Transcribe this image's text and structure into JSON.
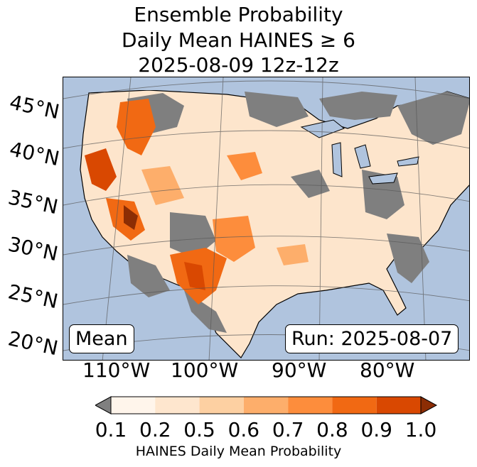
{
  "title": {
    "line1": "Ensemble Probability",
    "line2": "Daily Mean HAINES ≥ 6",
    "line3": "2025-08-09 12z-12z"
  },
  "map": {
    "lat_labels": [
      "45°N",
      "40°N",
      "35°N",
      "30°N",
      "25°N",
      "20°N"
    ],
    "lon_labels": [
      "110°W",
      "100°W",
      "90°W",
      "80°W"
    ],
    "stat_box": "Mean",
    "run_box": "Run: 2025-08-07",
    "colors": {
      "ocean": "#b0c4de",
      "land_missing": "#7f7f7f",
      "lt_0_1": "#7f7f7f"
    }
  },
  "colorbar": {
    "ticks": [
      "0.1",
      "0.2",
      "0.5",
      "0.6",
      "0.7",
      "0.8",
      "0.9",
      "1.0"
    ],
    "label": "HAINES Daily Mean Probability",
    "colors": [
      "#fff5eb",
      "#fee6ce",
      "#fdd0a2",
      "#fdae6b",
      "#fd8d3c",
      "#f16913",
      "#d94801"
    ],
    "under_color": "#808080",
    "over_color": "#8c2d04"
  }
}
